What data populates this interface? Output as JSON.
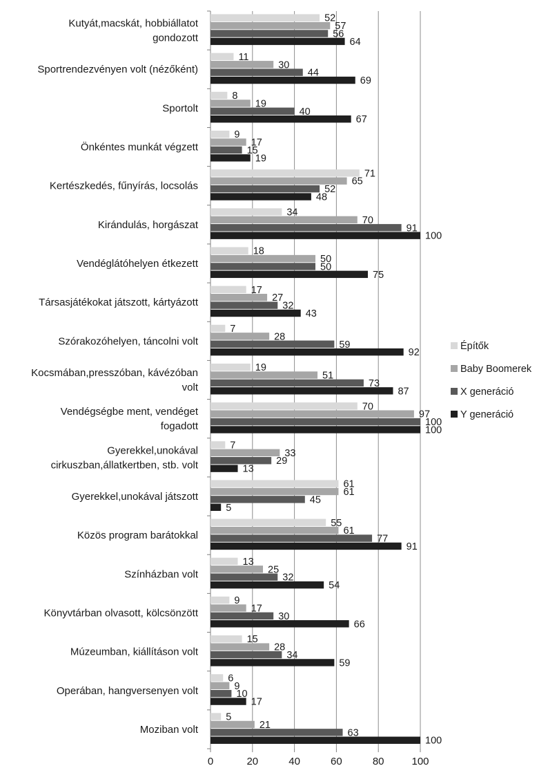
{
  "chart_data": {
    "type": "bar",
    "orientation": "horizontal",
    "categories": [
      [
        "Kutyát,macskát, hobbiállatot",
        "gondozott"
      ],
      [
        "Sportrendezvényen volt (nézőként)"
      ],
      [
        "Sportolt"
      ],
      [
        "Önkéntes munkát végzett"
      ],
      [
        "Kertészkedés, fűnyírás, locsolás"
      ],
      [
        "Kirándulás, horgászat"
      ],
      [
        "Vendéglátóhelyen étkezett"
      ],
      [
        "Társasjátékokat játszott, kártyázott"
      ],
      [
        "Szórakozóhelyen, táncolni volt"
      ],
      [
        "Kocsmában,presszóban,  kávézóban",
        "volt"
      ],
      [
        "Vendégségbe ment, vendéget",
        "fogadott"
      ],
      [
        "Gyerekkel,unokával",
        "cirkuszban,állatkertben, stb. volt"
      ],
      [
        "Gyerekkel,unokával játszott"
      ],
      [
        "Közös program barátokkal"
      ],
      [
        "Színházban volt"
      ],
      [
        "Könyvtárban olvasott, kölcsönzött"
      ],
      [
        "Múzeumban, kiállításon volt"
      ],
      [
        "Operában, hangversenyen volt"
      ],
      [
        "Moziban volt"
      ]
    ],
    "series": [
      {
        "name": "Építők",
        "color": "#d9d9d9",
        "values": [
          52,
          11,
          8,
          9,
          71,
          34,
          18,
          17,
          7,
          19,
          70,
          7,
          61,
          55,
          13,
          9,
          15,
          6,
          5
        ]
      },
      {
        "name": "Baby Boomerek",
        "color": "#a6a6a6",
        "values": [
          57,
          30,
          19,
          17,
          65,
          70,
          50,
          27,
          28,
          51,
          97,
          33,
          61,
          61,
          25,
          17,
          28,
          9,
          21
        ]
      },
      {
        "name": "X generáció",
        "color": "#595959",
        "values": [
          56,
          44,
          40,
          15,
          52,
          91,
          50,
          32,
          59,
          73,
          100,
          29,
          45,
          77,
          32,
          30,
          34,
          10,
          63
        ]
      },
      {
        "name": "Y generáció",
        "color": "#1f1f1f",
        "values": [
          64,
          69,
          67,
          19,
          48,
          100,
          75,
          43,
          92,
          87,
          100,
          13,
          5,
          91,
          54,
          66,
          59,
          17,
          100
        ]
      }
    ],
    "xticks": [
      "0",
      "20",
      "40",
      "60",
      "80",
      "100"
    ],
    "xlim": [
      0,
      100
    ],
    "grid": true,
    "legend": "right"
  }
}
